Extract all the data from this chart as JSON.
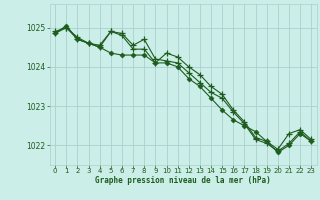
{
  "title": "Graphe pression niveau de la mer (hPa)",
  "background_color": "#cceee8",
  "grid_color": "#aacfcf",
  "line_color": "#1e5c1e",
  "marker_color": "#1e5c1e",
  "xlim": [
    -0.5,
    23.5
  ],
  "ylim": [
    1021.5,
    1025.6
  ],
  "yticks": [
    1022,
    1023,
    1024,
    1025
  ],
  "xticks": [
    0,
    1,
    2,
    3,
    4,
    5,
    6,
    7,
    8,
    9,
    10,
    11,
    12,
    13,
    14,
    15,
    16,
    17,
    18,
    19,
    20,
    21,
    22,
    23
  ],
  "line1_x": [
    0,
    1,
    2,
    3,
    4,
    5,
    6,
    7,
    8,
    9,
    10,
    11,
    12,
    13,
    14,
    15,
    16,
    17,
    18,
    19,
    20,
    21,
    22,
    23
  ],
  "line1": [
    1024.9,
    1025.0,
    1024.75,
    1024.6,
    1024.55,
    1024.9,
    1024.85,
    1024.55,
    1024.7,
    1024.2,
    1024.15,
    1024.1,
    1023.85,
    1023.6,
    1023.35,
    1023.2,
    1022.85,
    1022.55,
    1022.15,
    1022.05,
    1021.85,
    1022.05,
    1022.35,
    1022.1
  ],
  "line2_x": [
    0,
    1,
    2,
    3,
    4,
    5,
    6,
    7,
    8,
    9,
    10,
    11,
    12,
    13,
    14,
    15,
    16,
    17,
    18,
    19,
    20,
    21,
    22,
    23
  ],
  "line2": [
    1024.85,
    1025.05,
    1024.7,
    1024.6,
    1024.5,
    1024.35,
    1024.3,
    1024.3,
    1024.3,
    1024.1,
    1024.1,
    1024.0,
    1023.7,
    1023.5,
    1023.2,
    1022.9,
    1022.65,
    1022.5,
    1022.35,
    1022.1,
    1021.82,
    1022.0,
    1022.3,
    1022.1
  ],
  "line3_x": [
    0,
    1,
    2,
    3,
    4,
    5,
    6,
    7,
    8,
    9,
    10,
    11,
    12,
    13,
    14,
    15,
    16,
    17,
    18,
    19,
    20,
    21,
    22,
    23
  ],
  "line3": [
    1024.85,
    1025.0,
    1024.7,
    1024.6,
    1024.5,
    1024.9,
    1024.8,
    1024.45,
    1024.45,
    1024.1,
    1024.35,
    1024.25,
    1024.0,
    1023.8,
    1023.5,
    1023.3,
    1022.9,
    1022.6,
    1022.2,
    1022.1,
    1021.9,
    1022.3,
    1022.4,
    1022.15
  ]
}
